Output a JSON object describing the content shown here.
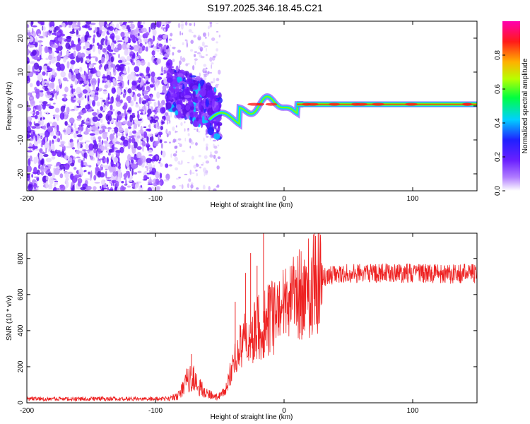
{
  "title": "S197.2025.346.18.45.C21",
  "chart_data": [
    {
      "type": "heatmap",
      "name": "spectrogram",
      "xlabel": "Height of straight line (km)",
      "ylabel": "Frequency (Hz)",
      "xlim": [
        -200,
        150
      ],
      "ylim": [
        -25,
        25
      ],
      "xticks": [
        -200,
        -100,
        0,
        100
      ],
      "xtick_labels": [
        "-200",
        "-100",
        "0",
        "100"
      ],
      "yticks": [
        -20,
        -10,
        0,
        10,
        20
      ],
      "ytick_labels": [
        "-20",
        "-10",
        "0",
        "10",
        "20"
      ],
      "colorbar": {
        "label": "Normalized spectral amplitude",
        "range": [
          0,
          1
        ],
        "ticks": [
          0.0,
          0.2,
          0.4,
          0.6,
          0.8
        ],
        "tick_labels": [
          "0.0",
          "0.2",
          "0.4",
          "0.6",
          "0.8"
        ],
        "colormap": [
          "#ffffff",
          "#8b3cff",
          "#2020ff",
          "#00e0ff",
          "#00ff40",
          "#c8ff00",
          "#ffb000",
          "#ff2020",
          "#ff00b0"
        ]
      },
      "regions": [
        {
          "kind": "noise",
          "x_range": [
            -200,
            -90
          ],
          "freq_range": [
            -25,
            25
          ],
          "amplitude": "low (0.0-0.2)"
        },
        {
          "kind": "transition",
          "x_range": [
            -90,
            -50
          ],
          "freq_range": [
            -15,
            12
          ],
          "amplitude": "0.1-0.3"
        },
        {
          "kind": "tone",
          "x_range": [
            -50,
            150
          ],
          "freq_hz": 0.5,
          "amplitude": "0.8-1.0"
        }
      ]
    },
    {
      "type": "line",
      "name": "snr",
      "xlabel": "Height of straight line (km)",
      "ylabel": "SNR (10 * v/v)",
      "xlim": [
        -200,
        150
      ],
      "ylim": [
        0,
        940
      ],
      "xticks": [
        -200,
        -100,
        0,
        100
      ],
      "xtick_labels": [
        "-200",
        "-100",
        "0",
        "100"
      ],
      "yticks": [
        0,
        200,
        400,
        600,
        800
      ],
      "ytick_labels": [
        "0",
        "200",
        "400",
        "600",
        "800"
      ],
      "color": "#ee2222",
      "envelope": {
        "x": [
          -200,
          -90,
          -82,
          -76,
          -72,
          -66,
          -60,
          -52,
          -45,
          -40,
          -35,
          -30,
          -25,
          -20,
          -15,
          -10,
          -5,
          0,
          5,
          10,
          15,
          20,
          25,
          30,
          40,
          50,
          60,
          80,
          100,
          130,
          150
        ],
        "y": [
          22,
          22,
          40,
          120,
          150,
          90,
          50,
          30,
          80,
          200,
          300,
          360,
          390,
          420,
          450,
          470,
          500,
          520,
          545,
          575,
          610,
          640,
          670,
          690,
          710,
          715,
          720,
          720,
          718,
          715,
          715
        ]
      },
      "spikes": [
        {
          "x": -72,
          "y": 270
        },
        {
          "x": -38,
          "y": 560
        },
        {
          "x": -30,
          "y": 720
        },
        {
          "x": -26,
          "y": 830
        },
        {
          "x": -21,
          "y": 760
        },
        {
          "x": -16,
          "y": 945
        },
        {
          "x": -12,
          "y": 610
        },
        {
          "x": -4,
          "y": 560
        }
      ]
    }
  ]
}
